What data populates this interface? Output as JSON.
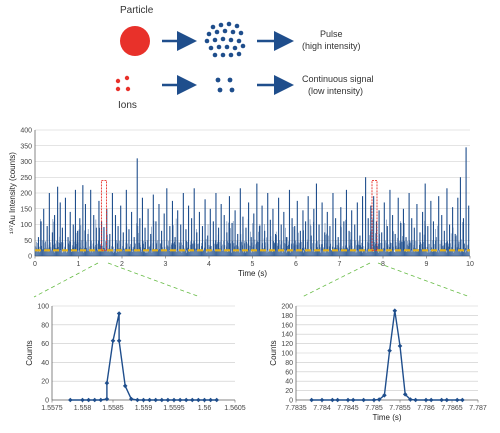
{
  "diagram": {
    "particle_label": "Particle",
    "ions_label": "Ions",
    "pulse_line1": "Pulse",
    "pulse_line2": "(high intensity)",
    "continuous_line1": "Continuous signal",
    "continuous_line2": "(low intensity)",
    "particle_color": "#e8312a",
    "ion_color": "#e8312a",
    "dot_color": "#1f4e8c",
    "arrow_color": "#1f4e8c"
  },
  "chart_data": [
    {
      "type": "line",
      "id": "main",
      "xlabel": "Time (s)",
      "ylabel": "¹⁹⁷Au Intensity (counts)",
      "xlim": [
        0,
        10
      ],
      "ylim": [
        0,
        400
      ],
      "xticks": [
        0,
        1,
        2,
        3,
        4,
        5,
        6,
        7,
        8,
        9,
        10
      ],
      "yticks": [
        0,
        50,
        100,
        150,
        200,
        250,
        300,
        350,
        400
      ],
      "grid": true,
      "series_color": "#1f4e8c",
      "baseline_color": "#e6b117",
      "baseline_value": 18,
      "highlight_color": "#e8312a",
      "highlight_windows": [
        [
          1.55,
          1.62
        ],
        [
          7.77,
          7.8
        ]
      ],
      "spikes": [
        [
          0.08,
          60
        ],
        [
          0.14,
          110
        ],
        [
          0.2,
          150
        ],
        [
          0.28,
          95
        ],
        [
          0.33,
          200
        ],
        [
          0.4,
          75
        ],
        [
          0.45,
          130
        ],
        [
          0.52,
          220
        ],
        [
          0.58,
          170
        ],
        [
          0.63,
          90
        ],
        [
          0.7,
          185
        ],
        [
          0.76,
          60
        ],
        [
          0.81,
          140
        ],
        [
          0.88,
          100
        ],
        [
          0.93,
          210
        ],
        [
          0.98,
          80
        ],
        [
          1.03,
          120
        ],
        [
          1.1,
          225
        ],
        [
          1.16,
          165
        ],
        [
          1.22,
          70
        ],
        [
          1.28,
          210
        ],
        [
          1.35,
          130
        ],
        [
          1.41,
          90
        ],
        [
          1.47,
          175
        ],
        [
          1.53,
          110
        ],
        [
          1.585,
          92
        ],
        [
          1.65,
          150
        ],
        [
          1.72,
          70
        ],
        [
          1.78,
          200
        ],
        [
          1.85,
          130
        ],
        [
          1.91,
          95
        ],
        [
          1.97,
          160
        ],
        [
          2.03,
          75
        ],
        [
          2.1,
          210
        ],
        [
          2.16,
          85
        ],
        [
          2.22,
          140
        ],
        [
          2.28,
          60
        ],
        [
          2.35,
          310
        ],
        [
          2.41,
          120
        ],
        [
          2.47,
          185
        ],
        [
          2.53,
          90
        ],
        [
          2.6,
          150
        ],
        [
          2.66,
          70
        ],
        [
          2.72,
          195
        ],
        [
          2.78,
          110
        ],
        [
          2.85,
          165
        ],
        [
          2.91,
          80
        ],
        [
          2.97,
          135
        ],
        [
          3.03,
          215
        ],
        [
          3.1,
          95
        ],
        [
          3.16,
          175
        ],
        [
          3.22,
          60
        ],
        [
          3.28,
          145
        ],
        [
          3.35,
          100
        ],
        [
          3.41,
          200
        ],
        [
          3.47,
          85
        ],
        [
          3.53,
          160
        ],
        [
          3.6,
          120
        ],
        [
          3.66,
          215
        ],
        [
          3.72,
          75
        ],
        [
          3.78,
          140
        ],
        [
          3.85,
          95
        ],
        [
          3.91,
          180
        ],
        [
          3.97,
          65
        ],
        [
          4.03,
          150
        ],
        [
          4.1,
          110
        ],
        [
          4.16,
          200
        ],
        [
          4.22,
          90
        ],
        [
          4.28,
          165
        ],
        [
          4.35,
          130
        ],
        [
          4.41,
          75
        ],
        [
          4.47,
          190
        ],
        [
          4.53,
          105
        ],
        [
          4.6,
          145
        ],
        [
          4.66,
          70
        ],
        [
          4.72,
          215
        ],
        [
          4.78,
          125
        ],
        [
          4.85,
          90
        ],
        [
          4.91,
          170
        ],
        [
          4.97,
          60
        ],
        [
          5.03,
          135
        ],
        [
          5.1,
          230
        ],
        [
          5.16,
          95
        ],
        [
          5.22,
          160
        ],
        [
          5.28,
          80
        ],
        [
          5.35,
          200
        ],
        [
          5.41,
          115
        ],
        [
          5.47,
          150
        ],
        [
          5.53,
          70
        ],
        [
          5.6,
          185
        ],
        [
          5.66,
          100
        ],
        [
          5.72,
          140
        ],
        [
          5.78,
          60
        ],
        [
          5.85,
          210
        ],
        [
          5.91,
          120
        ],
        [
          5.97,
          95
        ],
        [
          6.03,
          175
        ],
        [
          6.1,
          80
        ],
        [
          6.16,
          145
        ],
        [
          6.22,
          110
        ],
        [
          6.28,
          190
        ],
        [
          6.35,
          65
        ],
        [
          6.41,
          150
        ],
        [
          6.47,
          230
        ],
        [
          6.53,
          100
        ],
        [
          6.6,
          170
        ],
        [
          6.66,
          75
        ],
        [
          6.72,
          140
        ],
        [
          6.78,
          95
        ],
        [
          6.85,
          200
        ],
        [
          6.91,
          120
        ],
        [
          6.97,
          60
        ],
        [
          7.03,
          155
        ],
        [
          7.1,
          110
        ],
        [
          7.16,
          210
        ],
        [
          7.22,
          80
        ],
        [
          7.28,
          145
        ],
        [
          7.35,
          100
        ],
        [
          7.41,
          170
        ],
        [
          7.47,
          65
        ],
        [
          7.53,
          190
        ],
        [
          7.6,
          250
        ],
        [
          7.66,
          120
        ],
        [
          7.72,
          160
        ],
        [
          7.785,
          190
        ],
        [
          7.85,
          110
        ],
        [
          7.91,
          145
        ],
        [
          7.97,
          75
        ],
        [
          8.03,
          170
        ],
        [
          8.1,
          95
        ],
        [
          8.16,
          210
        ],
        [
          8.22,
          130
        ],
        [
          8.28,
          70
        ],
        [
          8.35,
          185
        ],
        [
          8.41,
          105
        ],
        [
          8.47,
          150
        ],
        [
          8.53,
          60
        ],
        [
          8.6,
          200
        ],
        [
          8.66,
          120
        ],
        [
          8.72,
          90
        ],
        [
          8.78,
          165
        ],
        [
          8.85,
          75
        ],
        [
          8.91,
          140
        ],
        [
          8.97,
          230
        ],
        [
          9.03,
          95
        ],
        [
          9.1,
          175
        ],
        [
          9.16,
          110
        ],
        [
          9.22,
          60
        ],
        [
          9.28,
          190
        ],
        [
          9.35,
          130
        ],
        [
          9.41,
          80
        ],
        [
          9.47,
          215
        ],
        [
          9.53,
          100
        ],
        [
          9.6,
          155
        ],
        [
          9.66,
          70
        ],
        [
          9.72,
          185
        ],
        [
          9.78,
          250
        ],
        [
          9.85,
          120
        ],
        [
          9.91,
          345
        ],
        [
          9.97,
          160
        ]
      ]
    },
    {
      "type": "line",
      "id": "zoom-left",
      "xlabel": "",
      "ylabel": "Counts",
      "xlim": [
        1.5575,
        1.5605
      ],
      "ylim": [
        0,
        100
      ],
      "xticks": [
        "1.5575",
        "1.558",
        "1.5585",
        "1.559",
        "1.5595",
        "1.56",
        "1.5605"
      ],
      "yticks": [
        0,
        20,
        40,
        60,
        80,
        100
      ],
      "grid": true,
      "series_color": "#1f4e8c",
      "x": [
        1.5578,
        1.558,
        1.5581,
        1.5582,
        1.5583,
        1.5584,
        1.5584,
        1.5585,
        1.5586,
        1.5586,
        1.5587,
        1.5588,
        1.5589,
        1.559,
        1.5591,
        1.5592,
        1.5593,
        1.5594,
        1.5595,
        1.5596,
        1.5597,
        1.5598,
        1.5599,
        1.56,
        1.5601,
        1.5602
      ],
      "y": [
        0,
        0,
        0,
        0,
        0,
        1,
        18,
        63,
        92,
        63,
        15,
        1,
        0,
        0,
        0,
        0,
        0,
        0,
        0,
        0,
        0,
        0,
        0,
        0,
        0,
        0
      ]
    },
    {
      "type": "line",
      "id": "zoom-right",
      "xlabel": "Time (s)",
      "ylabel": "Counts",
      "xlim": [
        7.7835,
        7.787
      ],
      "ylim": [
        0,
        200
      ],
      "xticks": [
        "7.7835",
        "7.784",
        "7.7845",
        "7.785",
        "7.7855",
        "7.786",
        "7.7865",
        "7.787"
      ],
      "yticks": [
        0,
        20,
        40,
        60,
        80,
        100,
        120,
        140,
        160,
        180,
        200
      ],
      "grid": true,
      "series_color": "#1f4e8c",
      "x": [
        7.7838,
        7.784,
        7.7842,
        7.7843,
        7.7845,
        7.7846,
        7.7848,
        7.785,
        7.7851,
        7.7852,
        7.7853,
        7.7854,
        7.7855,
        7.7856,
        7.7857,
        7.7858,
        7.786,
        7.7861,
        7.7863,
        7.7864,
        7.7866,
        7.7867
      ],
      "y": [
        0,
        0,
        0,
        0,
        0,
        0,
        0,
        0,
        1,
        10,
        105,
        190,
        115,
        12,
        1,
        0,
        0,
        0,
        0,
        0,
        0,
        0
      ]
    }
  ]
}
